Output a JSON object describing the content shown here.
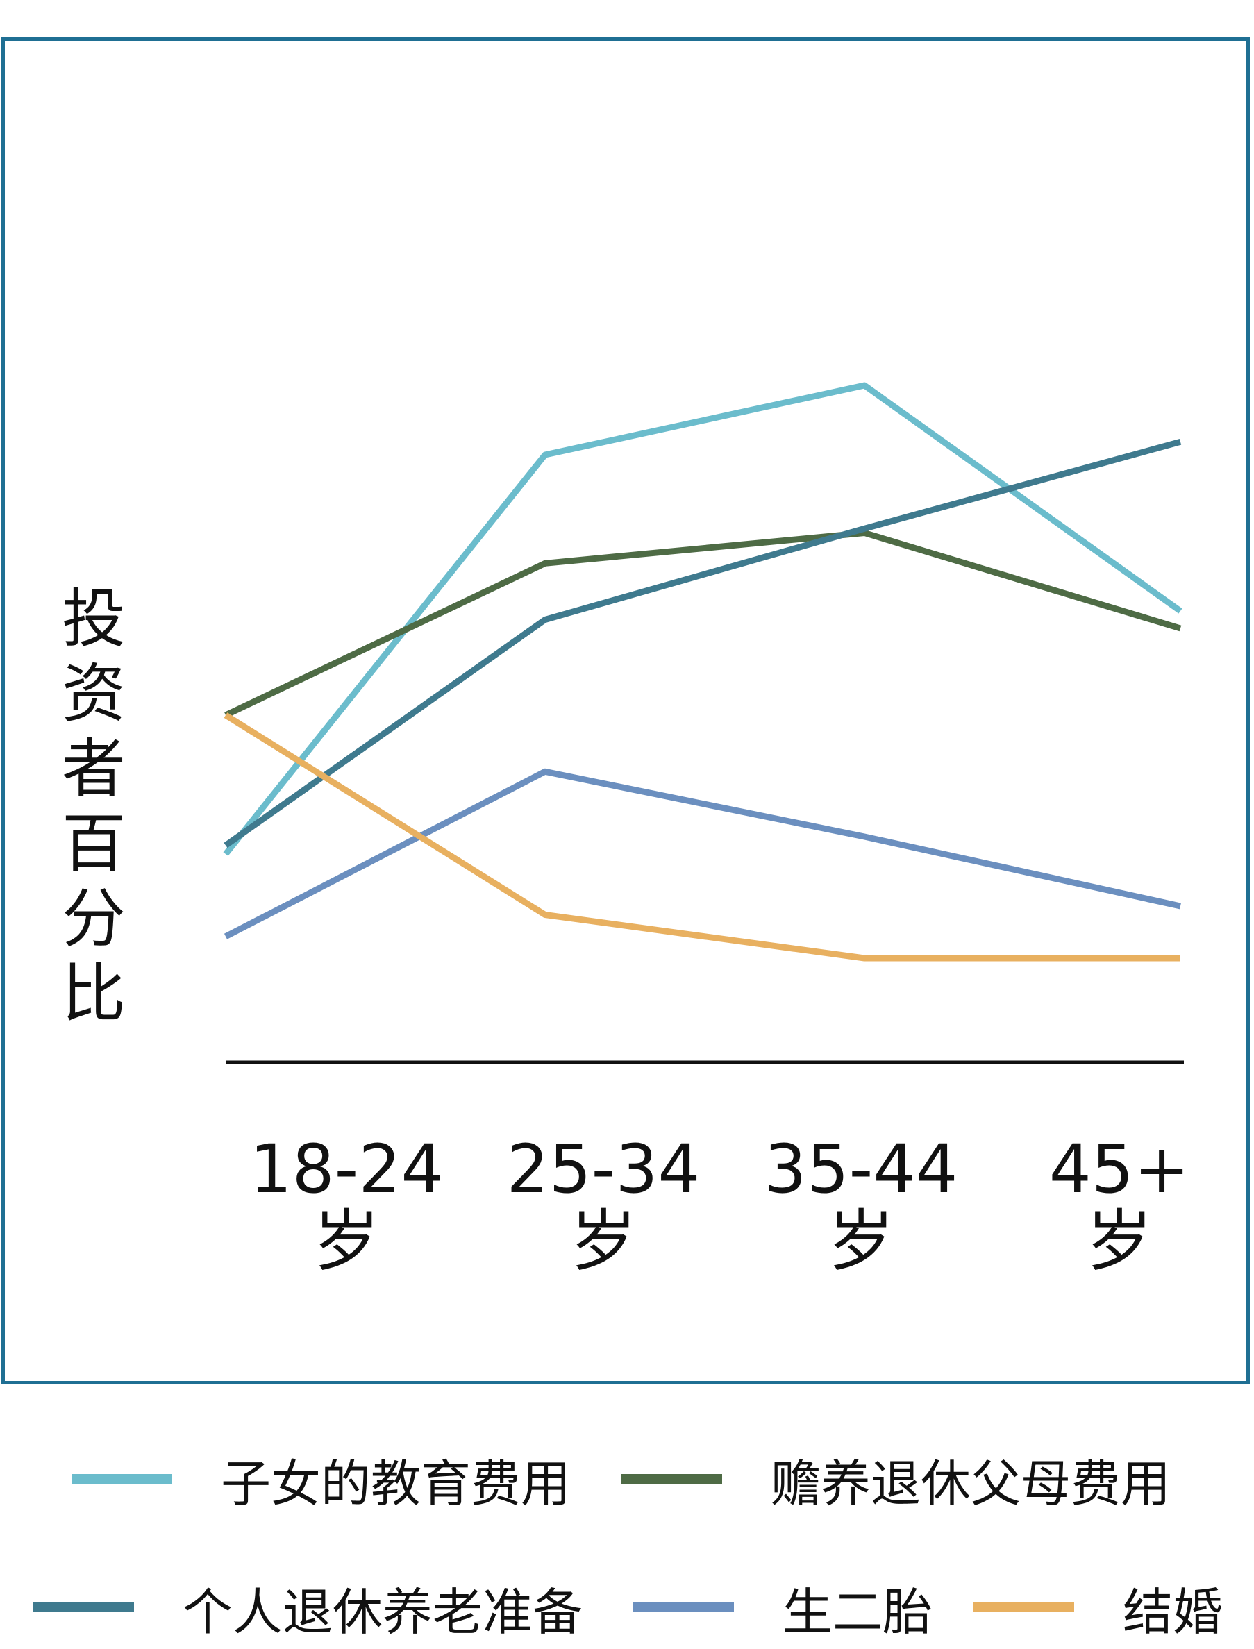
{
  "chart_data": {
    "type": "line",
    "categories": [
      "18-24\n岁",
      "25-34\n岁",
      "35-44\n岁",
      "45+\n岁"
    ],
    "ylabel": "投资者百分比",
    "xlabel": "",
    "grid": false,
    "legend_position": "bottom",
    "ylim": [
      0,
      100
    ],
    "series": [
      {
        "name": "子女的教育费用",
        "color": "#6bbccc",
        "values": [
          24,
          70,
          78,
          52
        ]
      },
      {
        "name": "赡养退休父母费用",
        "color": "#4e6b45",
        "values": [
          40,
          57.5,
          61,
          50
        ]
      },
      {
        "name": "个人退休养老准备",
        "color": "#3f7a8e",
        "values": [
          25,
          51,
          61.5,
          71.5
        ]
      },
      {
        "name": "生二胎",
        "color": "#6b8fbf",
        "values": [
          14.5,
          33.5,
          26,
          18
        ]
      },
      {
        "name": "结婚",
        "color": "#e8b060",
        "values": [
          40,
          17,
          12,
          12
        ]
      }
    ]
  },
  "colors": {
    "frame": "#1f6f93",
    "axis": "#111111"
  }
}
